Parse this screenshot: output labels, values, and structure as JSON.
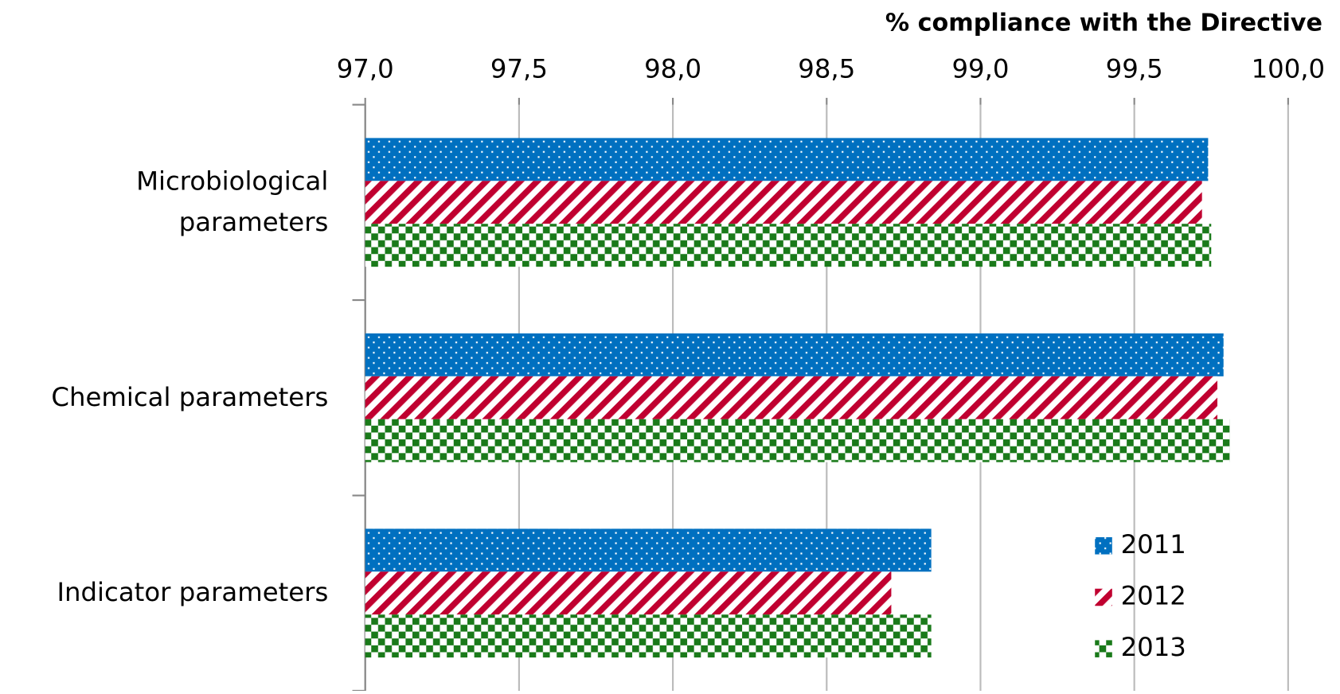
{
  "chart_data": {
    "type": "hbar",
    "axis_title": "% compliance with the Directive",
    "categories": [
      "Microbiological parameters",
      "Chemical parameters",
      "Indicator parameters"
    ],
    "series": [
      {
        "name": "2011",
        "color": "#0070c0",
        "values": [
          99.74,
          99.79,
          98.84
        ]
      },
      {
        "name": "2012",
        "color": "#c00030",
        "values": [
          99.72,
          99.77,
          98.71
        ]
      },
      {
        "name": "2013",
        "color": "#1a7a1a",
        "values": [
          99.75,
          99.81,
          98.84
        ]
      }
    ],
    "xlim": [
      97,
      100
    ],
    "xticks": [
      {
        "value": 97,
        "label": "97,0"
      },
      {
        "value": 97.5,
        "label": "97,5"
      },
      {
        "value": 98,
        "label": "98,0"
      },
      {
        "value": 98.5,
        "label": "98,5"
      },
      {
        "value": 99,
        "label": "99,0"
      },
      {
        "value": 99.5,
        "label": "99,5"
      },
      {
        "value": 100,
        "label": "100,0"
      }
    ],
    "grid": true,
    "legend": "lower right"
  }
}
